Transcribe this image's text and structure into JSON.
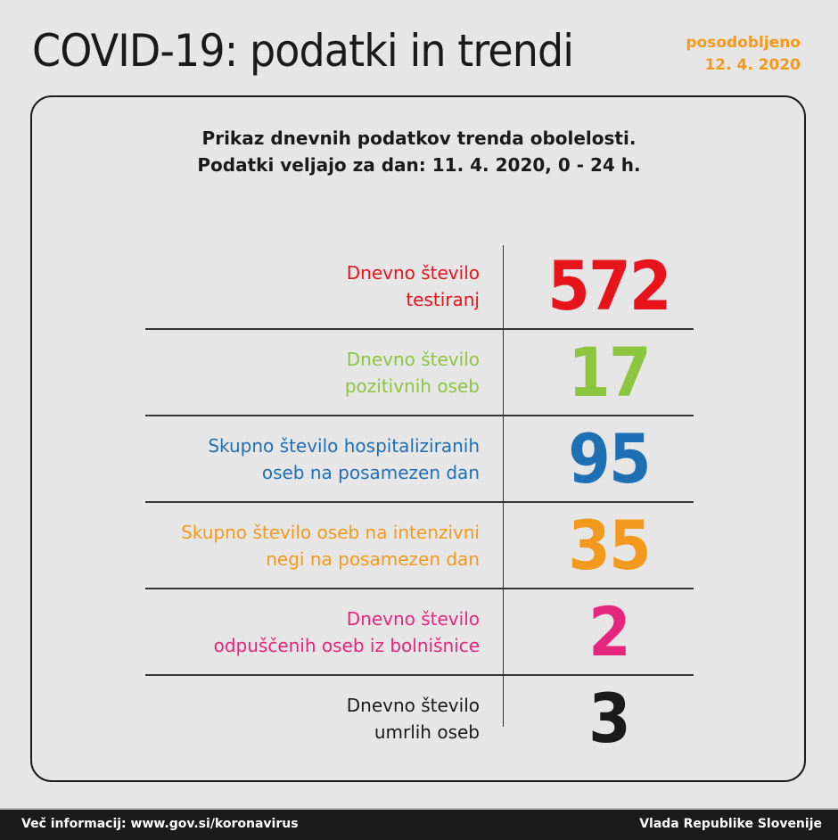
{
  "header": {
    "title": "COVID-19: podatki in trendi",
    "updated_label": "posodobljeno",
    "updated_date": "12. 4. 2020"
  },
  "subtitle": {
    "line1": "Prikaz dnevnih podatkov trenda obolelosti.",
    "line2": "Podatki veljajo za dan: 11. 4. 2020, 0 - 24 h."
  },
  "rows": [
    {
      "line1": "Dnevno število",
      "line2": "testiranj",
      "value": "572",
      "color": "#e8141c"
    },
    {
      "line1": "Dnevno število",
      "line2": "pozitivnih oseb",
      "value": "17",
      "color": "#8cc63f"
    },
    {
      "line1": "Skupno število hospitaliziranih",
      "line2": "oseb na posamezen dan",
      "value": "95",
      "color": "#1f6fb5"
    },
    {
      "line1": "Skupno število oseb na intenzivni",
      "line2": "negi na posamezen dan",
      "value": "35",
      "color": "#f39a1e"
    },
    {
      "line1": "Dnevno število",
      "line2": "odpuščenih oseb iz bolnišnice",
      "value": "2",
      "color": "#e5267d"
    },
    {
      "line1": "Dnevno število",
      "line2": "umrlih oseb",
      "value": "3",
      "color": "#1a1a1a"
    }
  ],
  "footer": {
    "more_info": "Več informacij: www.gov.si/koronavirus",
    "org": "Vlada Republike Slovenije"
  }
}
